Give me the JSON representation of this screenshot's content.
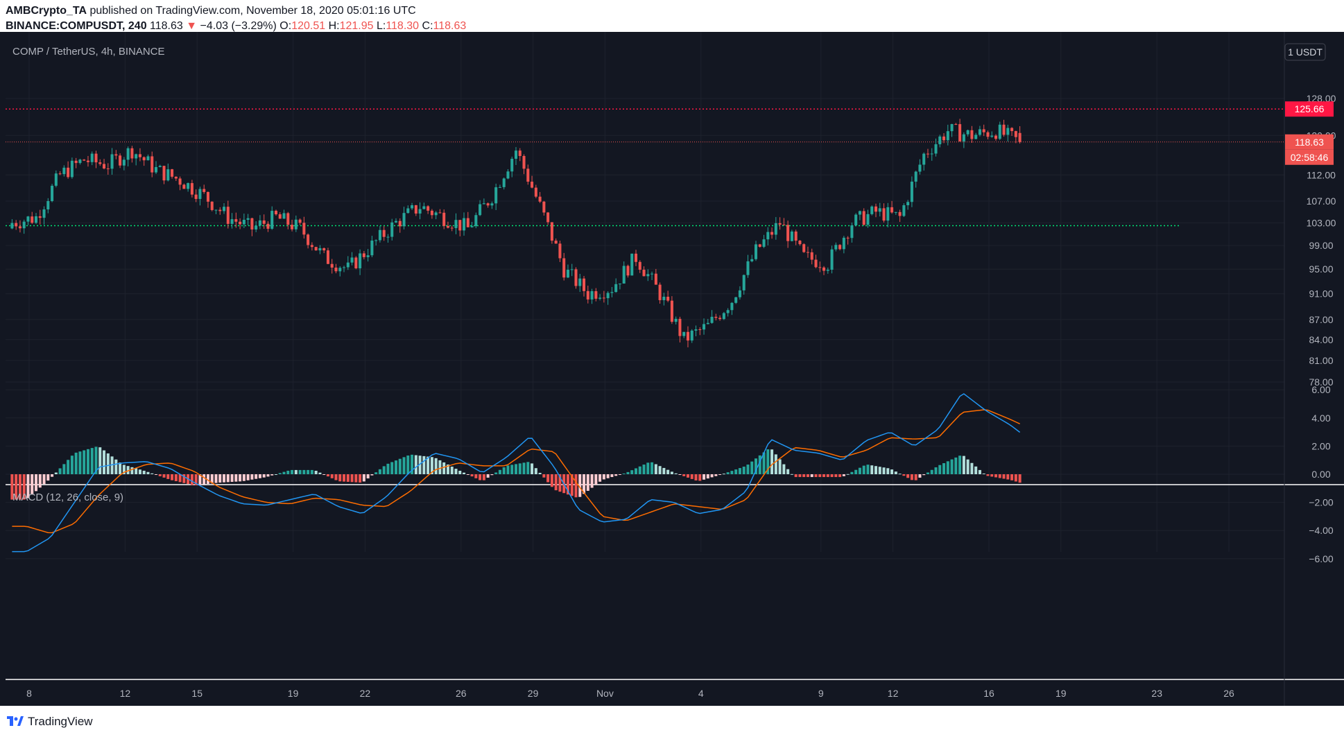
{
  "header": {
    "author": "AMBCrypto_TA",
    "published_text": "published on TradingView.com, November 18, 2020 05:01:16 UTC",
    "symbol": "BINANCE:COMPUSDT, 240",
    "last": "118.63",
    "change_arrow": "▼",
    "change": "−4.03 (−3.29%)",
    "o_label": "O:",
    "o_value": "120.51",
    "h_label": "H:",
    "h_value": "121.95",
    "l_label": "L:",
    "l_value": "118.30",
    "c_label": "C:",
    "c_value": "118.63"
  },
  "pane": {
    "title": "COMP / TetherUS, 4h, BINANCE",
    "unit_button": "1 USDT",
    "macd_title": "MACD (12, 26, close, 9)"
  },
  "price_tags": {
    "resistance": "125.66",
    "last": "118.63",
    "countdown": "02:58:46"
  },
  "footer": {
    "brand": "TradingView"
  },
  "colors": {
    "background": "#131722",
    "up": "#26a69a",
    "down": "#ef5350",
    "macd_line": "#2196f3",
    "signal_line": "#ff6d00",
    "resistance": "#ff1744",
    "support": "#00e676"
  },
  "chart_data": {
    "type": "candlestick",
    "price_axis_ticks": [
      128.0,
      120.0,
      112.0,
      107.0,
      103.0,
      99.0,
      95.0,
      91.0,
      87.0,
      84.0,
      81.0,
      78.0
    ],
    "price_axis_labels": [
      "128.00",
      "120.00",
      "112.00",
      "107.00",
      "103.00",
      "99.00",
      "95.00",
      "91.00",
      "87.00",
      "84.00",
      "81.00",
      "78.00"
    ],
    "macd_axis_ticks": [
      6,
      4,
      2,
      0,
      -2,
      -4,
      -6
    ],
    "macd_axis_labels": [
      "6.00",
      "4.00",
      "2.00",
      "0.00",
      "−2.00",
      "−4.00",
      "−6.00"
    ],
    "x_axis_labels": [
      "8",
      "12",
      "15",
      "19",
      "22",
      "26",
      "29",
      "Nov",
      "4",
      "9",
      "12",
      "16",
      "19",
      "23",
      "26"
    ],
    "x_axis_day_index": [
      0,
      4,
      7,
      11,
      14,
      18,
      21,
      24,
      28,
      33,
      36,
      40,
      43,
      47,
      50
    ],
    "resistance_level": 125.66,
    "support_level": 102.5,
    "last_price": 118.63,
    "close_series_daily": [
      103,
      104,
      112,
      115,
      114,
      117,
      113,
      111,
      108,
      104,
      102,
      104,
      102,
      97,
      95,
      99,
      103,
      106,
      104,
      102,
      108,
      117,
      106,
      95,
      91,
      92,
      97,
      91,
      84,
      86,
      90,
      98,
      103,
      97,
      96,
      103,
      105,
      104,
      116,
      121,
      120,
      121,
      118.63
    ],
    "macd_series_daily": [
      -5.5,
      -4.5,
      -2,
      0.5,
      0.8,
      0.9,
      0.4,
      -0.6,
      -1.5,
      -2.1,
      -2.2,
      -1.8,
      -1.4,
      -2.3,
      -2.8,
      -1.6,
      0.2,
      1.5,
      1.1,
      0.1,
      1.2,
      2.7,
      0.5,
      -2.5,
      -3.4,
      -3.2,
      -1.8,
      -2.0,
      -2.8,
      -2.5,
      -1.2,
      2.5,
      1.7,
      1.5,
      1.0,
      2.4,
      3.0,
      2.0,
      3.2,
      5.8,
      4.5,
      3.5,
      2.2
    ],
    "signal_series_daily": [
      -3.7,
      -4.2,
      -3.5,
      -1.5,
      0.1,
      0.7,
      0.8,
      0.2,
      -0.9,
      -1.6,
      -2.0,
      -2.1,
      -1.7,
      -1.8,
      -2.2,
      -2.3,
      -1.2,
      0.3,
      0.8,
      0.6,
      0.6,
      1.8,
      1.6,
      -0.8,
      -3.0,
      -3.3,
      -2.7,
      -2.1,
      -2.3,
      -2.5,
      -1.8,
      0.6,
      1.9,
      1.7,
      1.2,
      1.7,
      2.6,
      2.5,
      2.6,
      4.4,
      4.6,
      3.9,
      3.1
    ]
  }
}
